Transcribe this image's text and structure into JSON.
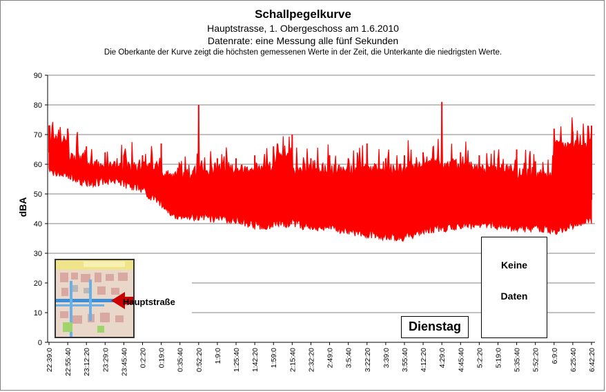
{
  "chart_data": {
    "type": "area",
    "title": "Schallpegelkurve",
    "subtitle_lines": [
      "Hauptstrasse, 1. Obergeschoss am 1.6.2010",
      "Datenrate: eine Messung alle fünf Sekunden",
      "Die Oberkante der Kurve zeigt die höchsten  gemessenen Werte  in der Zeit, die Unterkante  die niedrigsten Werte."
    ],
    "xlabel": "",
    "ylabel": "dBA",
    "ylim": [
      0,
      90
    ],
    "yticks": [
      0,
      10,
      20,
      30,
      40,
      50,
      60,
      70,
      80,
      90
    ],
    "grid": true,
    "x_tick_labels": [
      "22:39:0",
      "22:55:40",
      "23:12:20",
      "23:29:0",
      "23:45:40",
      "0:2:20",
      "0:19:0",
      "0:35:40",
      "0:52:20",
      "1:9:0",
      "1:25:40",
      "1:42:20",
      "1:59:0",
      "2:15:40",
      "2:32:20",
      "2:49:0",
      "3:5:40",
      "3:22:20",
      "3:39:0",
      "3:55:40",
      "4:12:20",
      "4:29:0",
      "4:45:40",
      "5:2:20",
      "5:19:0",
      "5:35:40",
      "5:52:20",
      "6:9:0",
      "6:25:40",
      "6:42:20"
    ],
    "series": [
      {
        "color": "#ff0000",
        "x": [
          "22:39:0",
          "22:55:40",
          "23:12:20",
          "23:29:0",
          "23:45:40",
          "0:2:20",
          "0:19:0",
          "0:35:40",
          "0:52:20",
          "1:9:0",
          "1:25:40",
          "1:42:20",
          "1:59:0",
          "2:15:40",
          "2:32:20",
          "2:49:0",
          "3:5:40",
          "3:22:20",
          "3:39:0",
          "3:55:40",
          "4:12:20",
          "4:29:0",
          "4:45:40",
          "5:2:20",
          "5:19:0",
          "5:35:40",
          "5:52:20",
          "6:9:0",
          "6:25:40",
          "6:42:20"
        ],
        "max": [
          73,
          72,
          66,
          64,
          63,
          63,
          67,
          60,
          80,
          62,
          62,
          63,
          66,
          70,
          62,
          63,
          62,
          67,
          62,
          63,
          64,
          81,
          64,
          63,
          62,
          65,
          61,
          72,
          71,
          73
        ],
        "min": [
          56,
          55,
          52,
          53,
          52,
          50,
          45,
          40,
          41,
          40,
          40,
          38,
          38,
          39,
          37,
          37,
          36,
          35,
          34,
          34,
          36,
          37,
          38,
          38,
          38,
          37,
          37,
          36,
          38,
          40
        ]
      }
    ],
    "annotations": [
      {
        "text": "Dienstag"
      },
      {
        "text_lines": [
          "Keine",
          "Daten"
        ]
      },
      {
        "text": "Hauptstraße"
      }
    ]
  },
  "colors": {
    "series": "#ff0000",
    "grid": "#808080",
    "map_road": "#3a8fd6",
    "map_arrow": "#cc0000"
  }
}
